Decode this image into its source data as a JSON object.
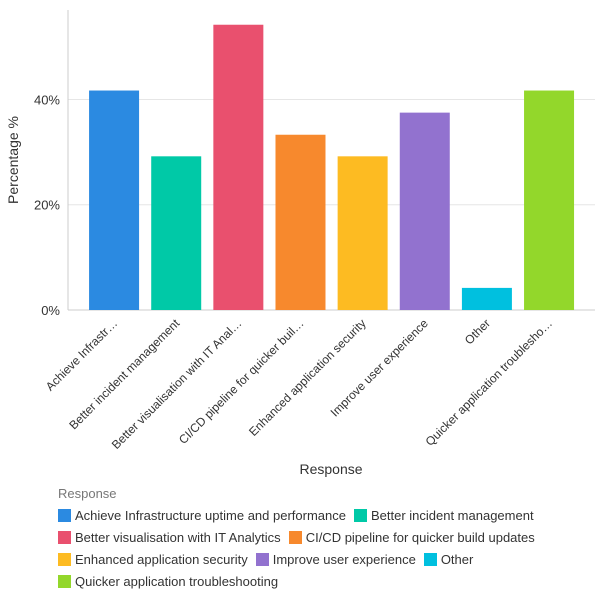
{
  "chart_data": {
    "type": "bar",
    "xlabel": "Response",
    "ylabel": "Percentage %",
    "ylim": [
      0,
      57
    ],
    "yticks": [
      0,
      20,
      40
    ],
    "ytick_labels": [
      "0%",
      "20%",
      "40%"
    ],
    "grid": true,
    "legend_title": "Response",
    "legend_placement": "bottom",
    "categories": [
      "Achieve Infrastructure uptime and performance",
      "Better incident management",
      "Better visualisation with IT Analytics",
      "CI/CD pipeline for quicker build updates",
      "Enhanced application security",
      "Improve user experience",
      "Other",
      "Quicker application troubleshooting"
    ],
    "tick_labels": [
      "Achieve Infrastr…",
      "Better incident management",
      "Better visualisation with IT Anal…",
      "CI/CD pipeline for quicker buil…",
      "Enhanced application security",
      "Improve user experience",
      "Other",
      "Quicker application troublesho…"
    ],
    "values": [
      41.7,
      29.2,
      54.2,
      33.3,
      29.2,
      37.5,
      4.2,
      41.7
    ],
    "colors": [
      "#2b8ae1",
      "#00c9a7",
      "#e9506e",
      "#f7892d",
      "#fdbb22",
      "#9272cf",
      "#00c0df",
      "#93d72b"
    ]
  }
}
